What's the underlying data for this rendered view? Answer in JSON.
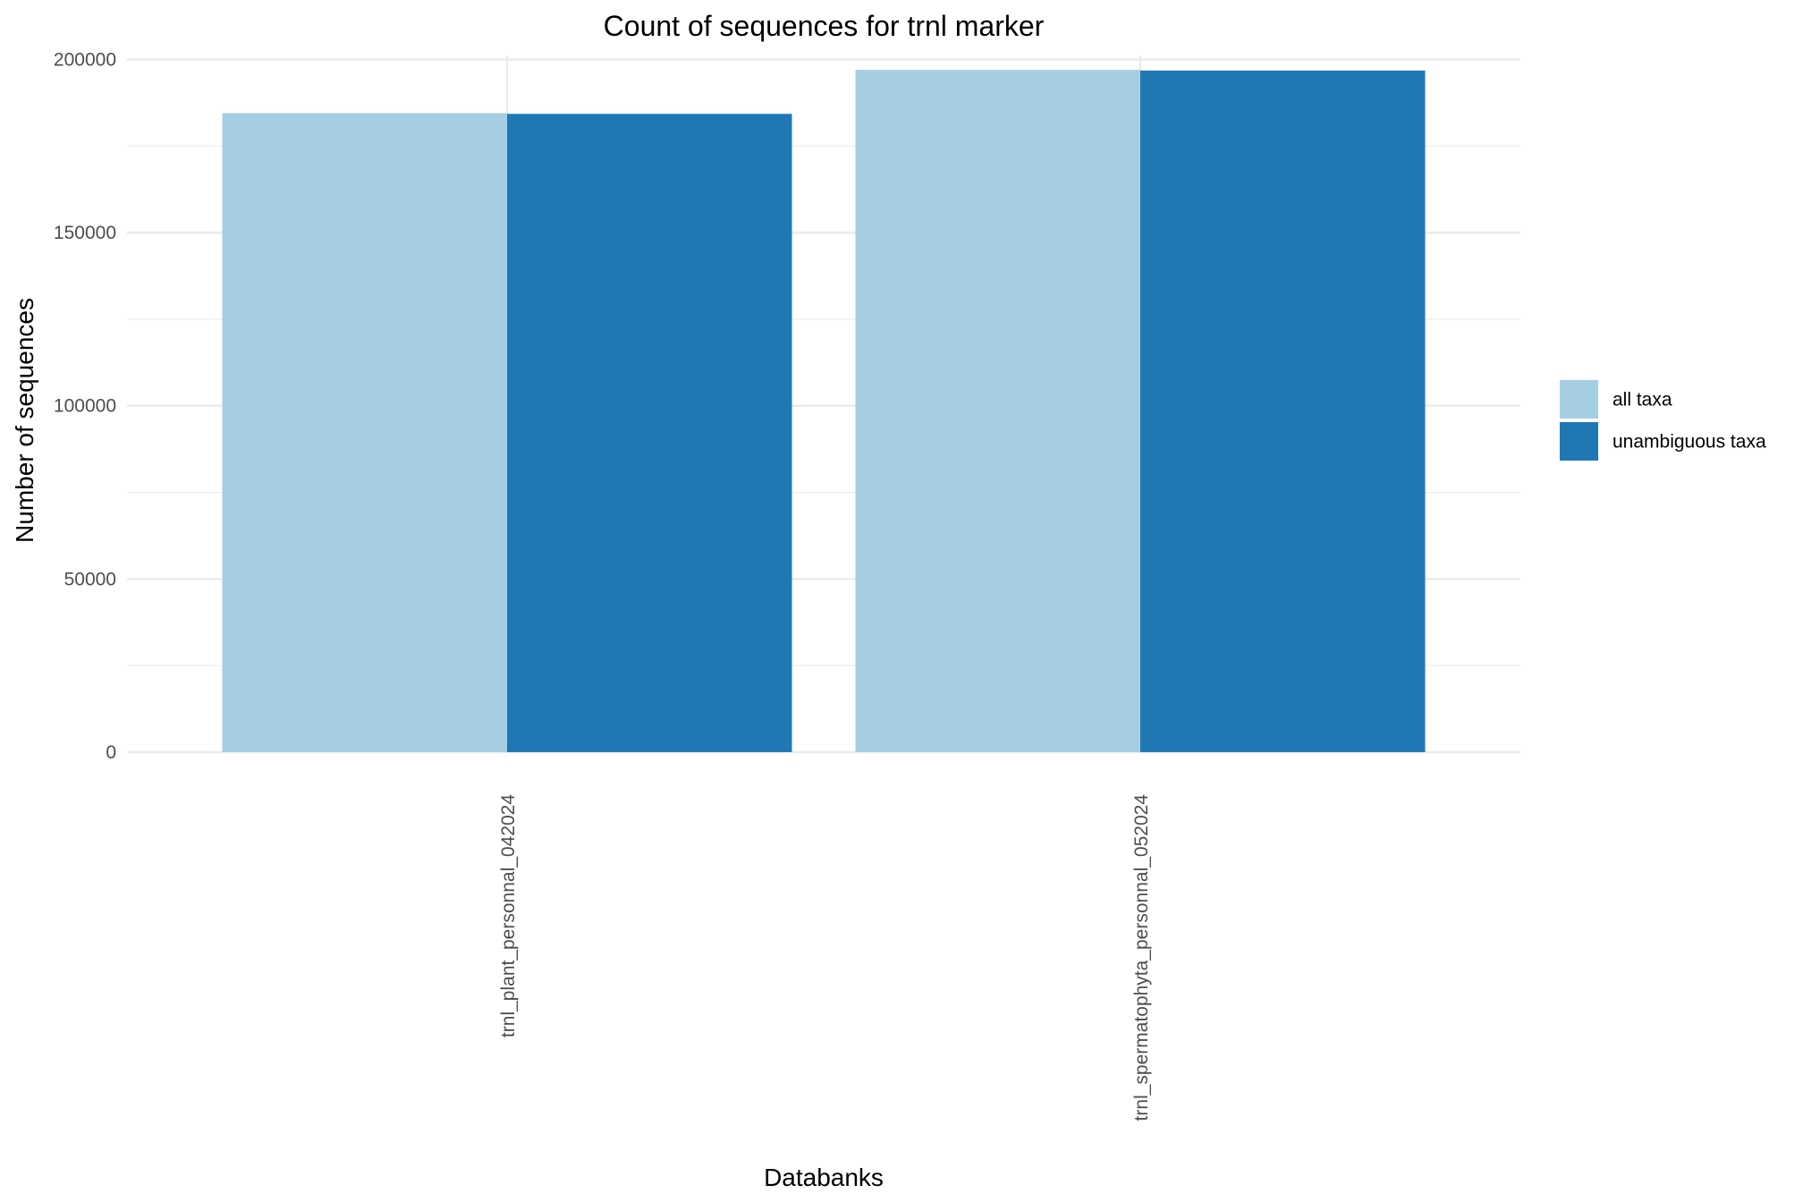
{
  "chart_data": {
    "type": "bar",
    "title": "Count of sequences for trnl marker",
    "xlabel": "Databanks",
    "ylabel": "Number of sequences",
    "categories": [
      "trnl_plant_personnal_042024",
      "trnl_spermatophyta_personnal_052024"
    ],
    "series": [
      {
        "name": "all taxa",
        "values": [
          184500,
          197000
        ],
        "color": "#a6cee3"
      },
      {
        "name": "unambiguous taxa",
        "values": [
          184300,
          196800
        ],
        "color": "#1f78b4"
      }
    ],
    "ylim": [
      0,
      200000
    ],
    "yticks": [
      0,
      50000,
      100000,
      150000,
      200000
    ],
    "grid": true,
    "legend_position": "right",
    "colors": {
      "grid": "#ebebeb",
      "tick_text": "#4d4d4d"
    }
  }
}
